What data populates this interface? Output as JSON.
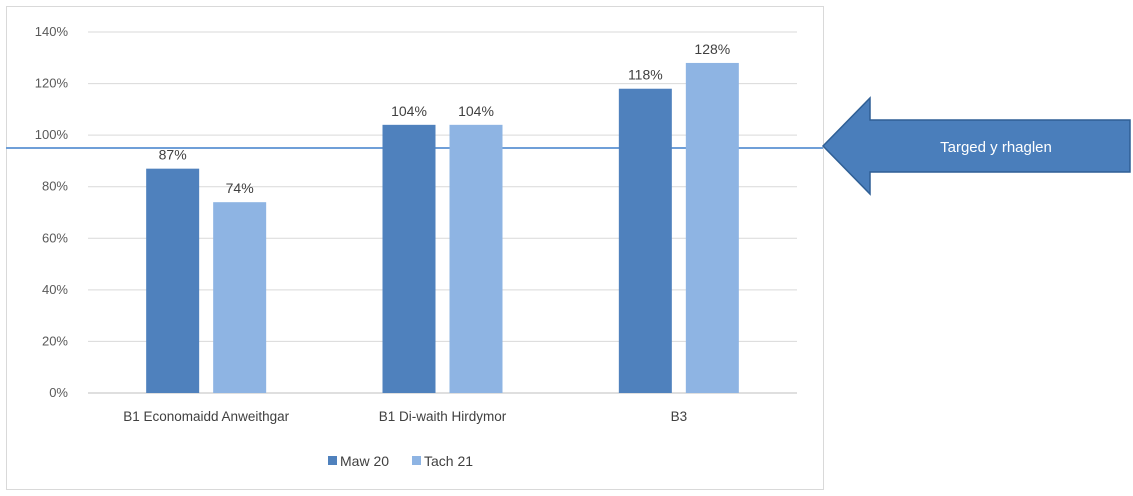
{
  "chart_data": {
    "type": "bar",
    "categories": [
      "B1 Economaidd Anweithgar",
      "B1 Di-waith Hirdymor",
      "B3"
    ],
    "series": [
      {
        "name": "Maw 20",
        "values": [
          87,
          104,
          118
        ],
        "labels": [
          "87%",
          "104%",
          "118%"
        ],
        "color": "#4f81bd"
      },
      {
        "name": "Tach 21",
        "values": [
          74,
          104,
          128
        ],
        "labels": [
          "74%",
          "104%",
          "128%"
        ],
        "color": "#8eb4e3"
      }
    ],
    "ylim": [
      0,
      140
    ],
    "yticks": [
      0,
      20,
      40,
      60,
      80,
      100,
      120,
      140
    ],
    "ytick_labels": [
      "0%",
      "20%",
      "40%",
      "60%",
      "80%",
      "100%",
      "120%",
      "140%"
    ],
    "gridlines": true,
    "legend_position": "bottom",
    "target_line": {
      "value": 95,
      "color": "#6f9fd8"
    }
  },
  "callout": {
    "text": "Targed y rhaglen",
    "fill": "#4a7ebb",
    "stroke": "#2f5f95"
  }
}
